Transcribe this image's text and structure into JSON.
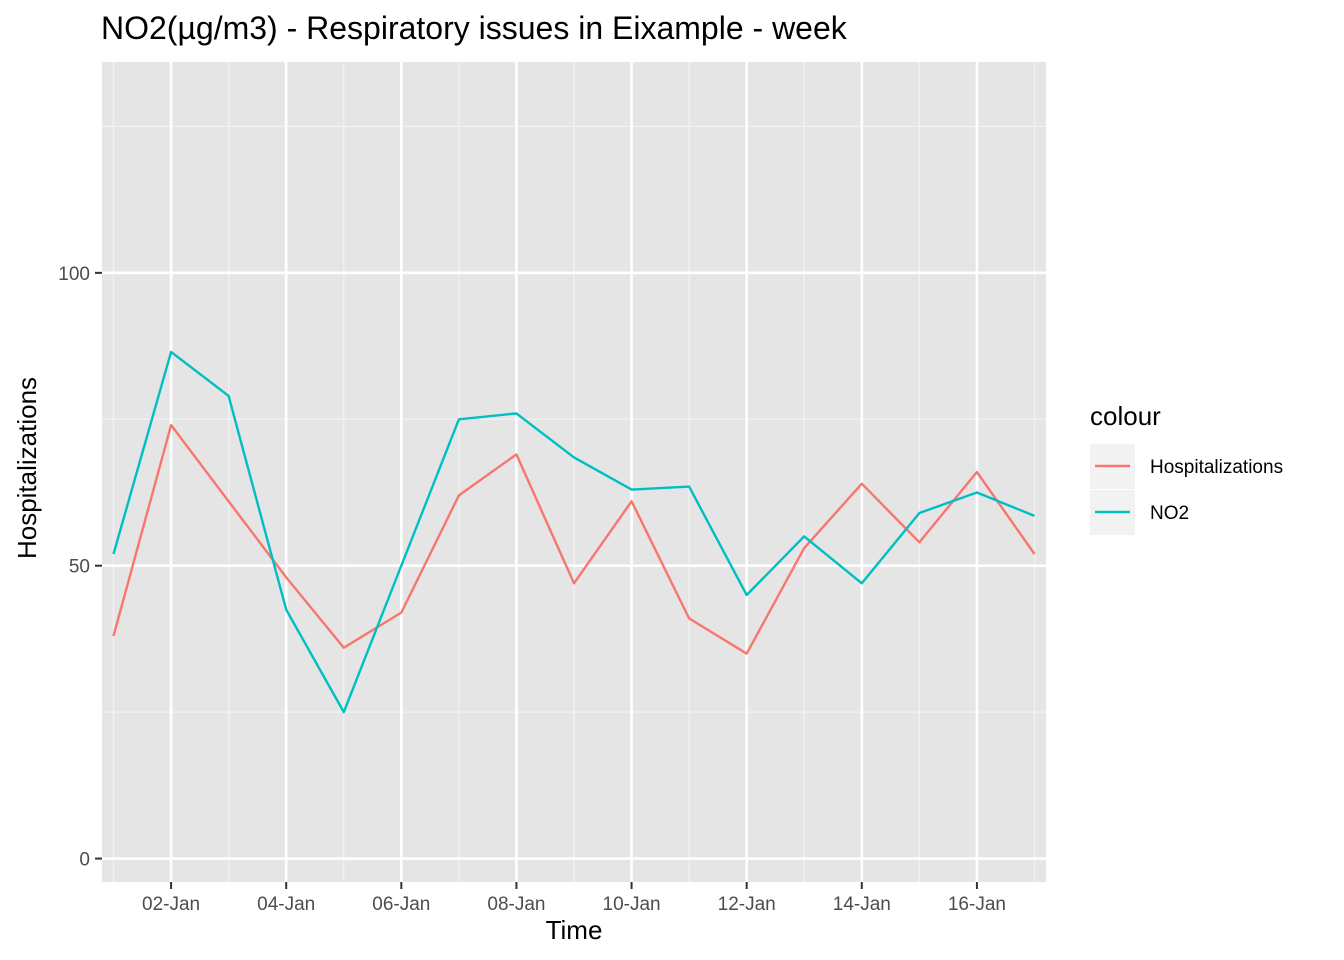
{
  "chart_data": {
    "type": "line",
    "title": "NO2(µg/m3) - Respiratory issues in Eixample - week",
    "xlabel": "Time",
    "ylabel": "Hospitalizations",
    "x": [
      "01-Jan",
      "02-Jan",
      "03-Jan",
      "04-Jan",
      "05-Jan",
      "06-Jan",
      "07-Jan",
      "08-Jan",
      "09-Jan",
      "10-Jan",
      "11-Jan",
      "12-Jan",
      "13-Jan",
      "14-Jan",
      "15-Jan",
      "16-Jan",
      "17-Jan"
    ],
    "x_tick_labels": [
      "02-Jan",
      "04-Jan",
      "06-Jan",
      "08-Jan",
      "10-Jan",
      "12-Jan",
      "14-Jan",
      "16-Jan"
    ],
    "xlim": [
      "31-Dec 14:00",
      "17-Jan 06:00"
    ],
    "ylim": [
      -4,
      136
    ],
    "y_ticks": [
      0,
      50,
      100
    ],
    "y_minor_ticks": [
      25,
      75,
      125
    ],
    "grid": true,
    "legend": {
      "title": "colour",
      "position": "right"
    },
    "series": [
      {
        "name": "Hospitalizations",
        "color": "#F8766D",
        "values": [
          38,
          74,
          61,
          48,
          36,
          42,
          62,
          69,
          47,
          61,
          41,
          35,
          53,
          64,
          54,
          66,
          52
        ]
      },
      {
        "name": "NO2",
        "color": "#00BFC4",
        "values": [
          52,
          86.5,
          79,
          42.5,
          25,
          50,
          75,
          76,
          68.5,
          63,
          63.5,
          45,
          55,
          47,
          59,
          62.5,
          58.5
        ]
      }
    ]
  }
}
